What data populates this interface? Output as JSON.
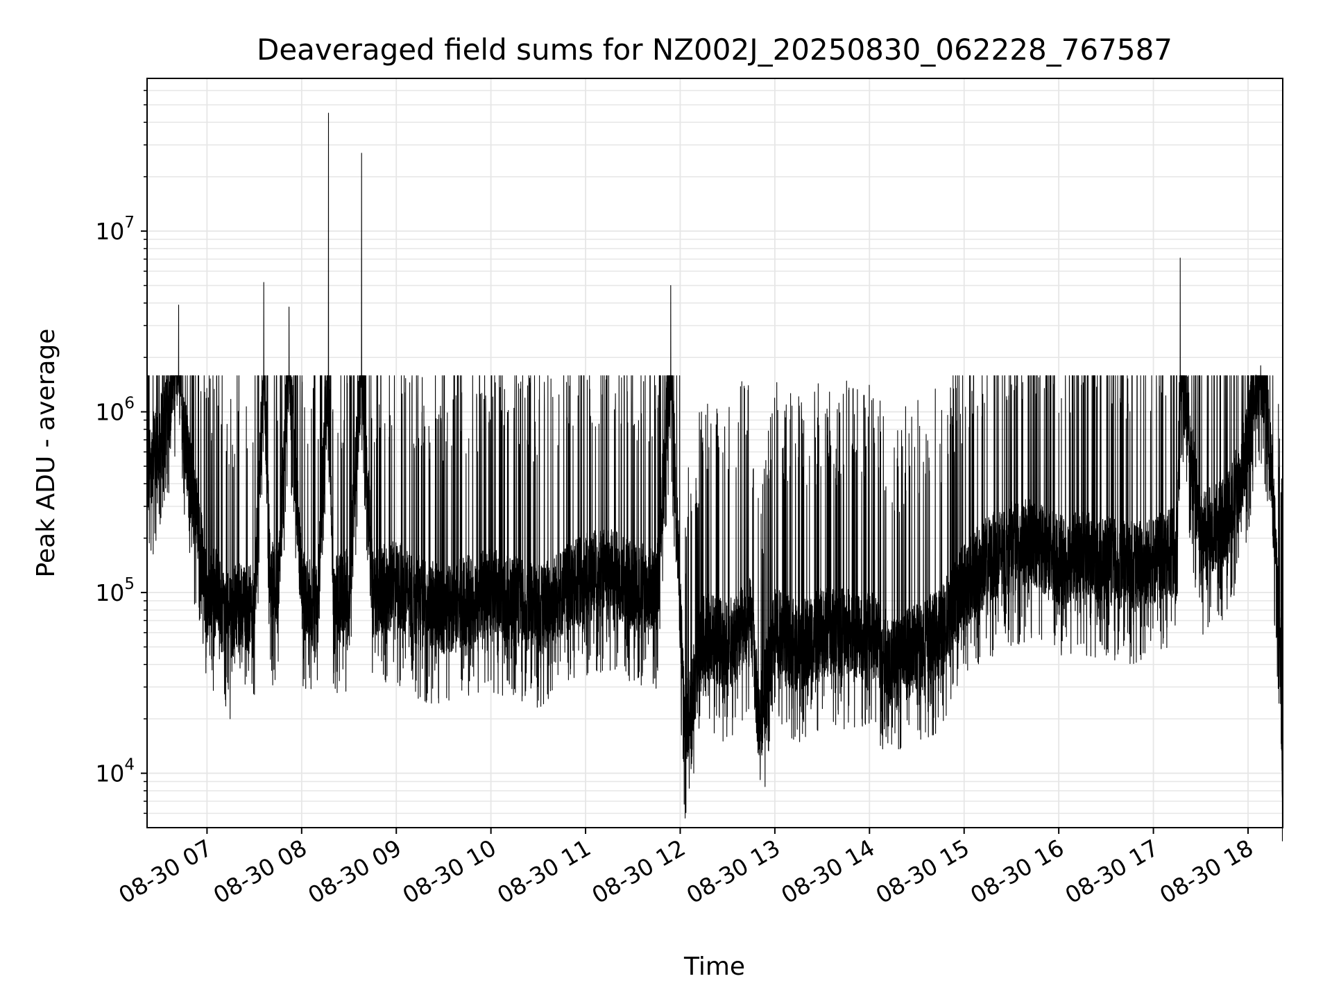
{
  "chart_data": {
    "type": "line",
    "title": "Deaveraged field sums for NZ002J_20250830_062228_767587",
    "xlabel": "Time",
    "ylabel": "Peak ADU - average",
    "yscale": "log",
    "ylim": [
      5000,
      70000000
    ],
    "xlim": [
      "2025-08-30 06:22",
      "2025-08-30 18:22"
    ],
    "grid": true,
    "line_color": "#000000",
    "grid_color": "#e6e6e6",
    "x_ticks": [
      {
        "label": "08-30 07",
        "value": "2025-08-30 07:00"
      },
      {
        "label": "08-30 08",
        "value": "2025-08-30 08:00"
      },
      {
        "label": "08-30 09",
        "value": "2025-08-30 09:00"
      },
      {
        "label": "08-30 10",
        "value": "2025-08-30 10:00"
      },
      {
        "label": "08-30 11",
        "value": "2025-08-30 11:00"
      },
      {
        "label": "08-30 12",
        "value": "2025-08-30 12:00"
      },
      {
        "label": "08-30 13",
        "value": "2025-08-30 13:00"
      },
      {
        "label": "08-30 14",
        "value": "2025-08-30 14:00"
      },
      {
        "label": "08-30 15",
        "value": "2025-08-30 15:00"
      },
      {
        "label": "08-30 16",
        "value": "2025-08-30 16:00"
      },
      {
        "label": "08-30 17",
        "value": "2025-08-30 17:00"
      },
      {
        "label": "08-30 18",
        "value": "2025-08-30 18:00"
      }
    ],
    "y_ticks": [
      {
        "base": "10",
        "exp": "4",
        "value": 10000
      },
      {
        "base": "10",
        "exp": "5",
        "value": 100000
      },
      {
        "base": "10",
        "exp": "6",
        "value": 1000000
      },
      {
        "base": "10",
        "exp": "7",
        "value": 10000000
      }
    ],
    "series": [
      {
        "x": [
          "2025-08-30 06:22",
          "2025-08-30 06:27",
          "2025-08-30 06:33",
          "2025-08-30 06:38",
          "2025-08-30 06:42",
          "2025-08-30 06:45",
          "2025-08-30 06:50",
          "2025-08-30 06:55",
          "2025-08-30 07:00",
          "2025-08-30 07:05",
          "2025-08-30 07:10",
          "2025-08-30 07:15",
          "2025-08-30 07:20",
          "2025-08-30 07:30",
          "2025-08-30 07:36",
          "2025-08-30 07:40",
          "2025-08-30 07:45",
          "2025-08-30 07:52",
          "2025-08-30 08:00",
          "2025-08-30 08:10",
          "2025-08-30 08:17",
          "2025-08-30 08:20",
          "2025-08-30 08:30",
          "2025-08-30 08:38",
          "2025-08-30 08:45",
          "2025-08-30 09:00",
          "2025-08-30 09:15",
          "2025-08-30 09:30",
          "2025-08-30 09:45",
          "2025-08-30 10:00",
          "2025-08-30 10:15",
          "2025-08-30 10:30",
          "2025-08-30 10:45",
          "2025-08-30 11:00",
          "2025-08-30 11:15",
          "2025-08-30 11:30",
          "2025-08-30 11:45",
          "2025-08-30 11:54",
          "2025-08-30 12:00",
          "2025-08-30 12:03",
          "2025-08-30 12:15",
          "2025-08-30 12:30",
          "2025-08-30 12:45",
          "2025-08-30 12:50",
          "2025-08-30 13:00",
          "2025-08-30 13:15",
          "2025-08-30 13:30",
          "2025-08-30 13:45",
          "2025-08-30 14:00",
          "2025-08-30 14:15",
          "2025-08-30 14:30",
          "2025-08-30 14:45",
          "2025-08-30 15:00",
          "2025-08-30 15:15",
          "2025-08-30 15:30",
          "2025-08-30 15:45",
          "2025-08-30 16:00",
          "2025-08-30 16:15",
          "2025-08-30 16:30",
          "2025-08-30 16:45",
          "2025-08-30 17:00",
          "2025-08-30 17:15",
          "2025-08-30 17:17",
          "2025-08-30 17:30",
          "2025-08-30 17:45",
          "2025-08-30 17:55",
          "2025-08-30 18:00",
          "2025-08-30 18:05",
          "2025-08-30 18:08",
          "2025-08-30 18:12",
          "2025-08-30 18:16",
          "2025-08-30 18:20",
          "2025-08-30 18:22"
        ],
        "y": [
          500000,
          600000,
          800000,
          1500000,
          3900000,
          900000,
          400000,
          200000,
          90000,
          100000,
          80000,
          70000,
          90000,
          80000,
          5200000,
          110000,
          100000,
          3800000,
          100000,
          80000,
          45000000,
          90000,
          100000,
          27000000,
          100000,
          110000,
          90000,
          80000,
          90000,
          100000,
          90000,
          80000,
          100000,
          120000,
          130000,
          110000,
          100000,
          5000000,
          80000,
          16000,
          60000,
          50000,
          70000,
          18000,
          60000,
          50000,
          60000,
          60000,
          60000,
          40000,
          50000,
          60000,
          110000,
          150000,
          180000,
          190000,
          150000,
          160000,
          150000,
          140000,
          150000,
          170000,
          7100000,
          200000,
          250000,
          400000,
          700000,
          1600000,
          1800000,
          1200000,
          300000,
          60000,
          9000
        ]
      }
    ]
  }
}
